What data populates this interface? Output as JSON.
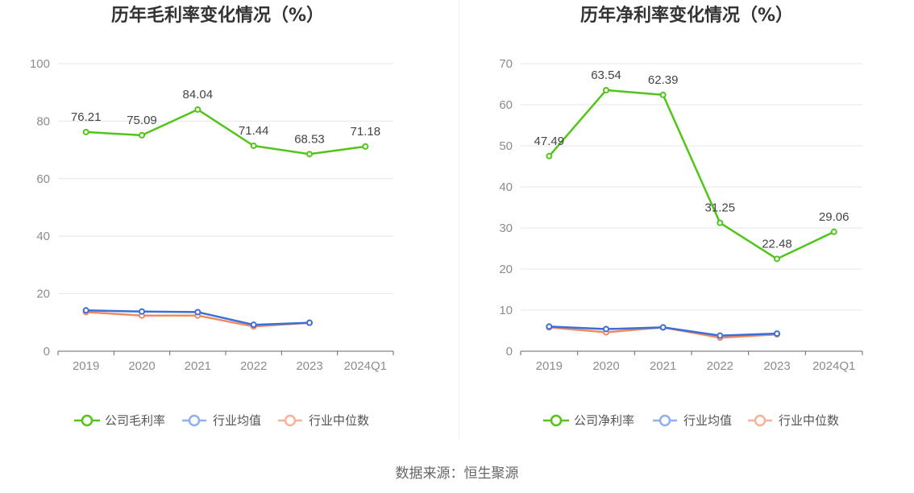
{
  "chart_data": [
    {
      "type": "line",
      "title": "历年毛利率变化情况（%）",
      "categories": [
        "2019",
        "2020",
        "2021",
        "2022",
        "2023",
        "2024Q1"
      ],
      "ylim": [
        0,
        100
      ],
      "yticks": [
        0,
        20,
        40,
        60,
        80,
        100
      ],
      "grid": true,
      "legend_position": "bottom",
      "series": [
        {
          "name": "公司毛利率",
          "color": "#52c41a",
          "values": [
            76.21,
            75.09,
            84.04,
            71.44,
            68.53,
            71.18
          ],
          "show_labels": true
        },
        {
          "name": "行业均值",
          "color": "#3b6fd6",
          "values": [
            14.2,
            13.8,
            13.6,
            9.2,
            9.9,
            null
          ],
          "show_labels": false
        },
        {
          "name": "行业中位数",
          "color": "#f08a62",
          "values": [
            13.6,
            12.4,
            12.4,
            8.6,
            9.9,
            null
          ],
          "show_labels": false
        }
      ],
      "legend_colors": [
        "#52c41a",
        "#8fb0f0",
        "#f7b39a"
      ]
    },
    {
      "type": "line",
      "title": "历年净利率变化情况（%）",
      "categories": [
        "2019",
        "2020",
        "2021",
        "2022",
        "2023",
        "2024Q1"
      ],
      "ylim": [
        0,
        70
      ],
      "yticks": [
        0,
        10,
        20,
        30,
        40,
        50,
        60,
        70
      ],
      "grid": true,
      "legend_position": "bottom",
      "series": [
        {
          "name": "公司净利率",
          "color": "#52c41a",
          "values": [
            47.49,
            63.54,
            62.39,
            31.25,
            22.48,
            29.06
          ],
          "show_labels": true
        },
        {
          "name": "行业均值",
          "color": "#3b6fd6",
          "values": [
            6.0,
            5.4,
            5.8,
            3.8,
            4.3,
            null
          ],
          "show_labels": false
        },
        {
          "name": "行业中位数",
          "color": "#f08a62",
          "values": [
            5.8,
            4.6,
            5.8,
            3.3,
            4.1,
            null
          ],
          "show_labels": false
        }
      ],
      "legend_colors": [
        "#52c41a",
        "#8fb0f0",
        "#f7b39a"
      ]
    }
  ],
  "footer": {
    "source": "数据来源：恒生聚源"
  }
}
